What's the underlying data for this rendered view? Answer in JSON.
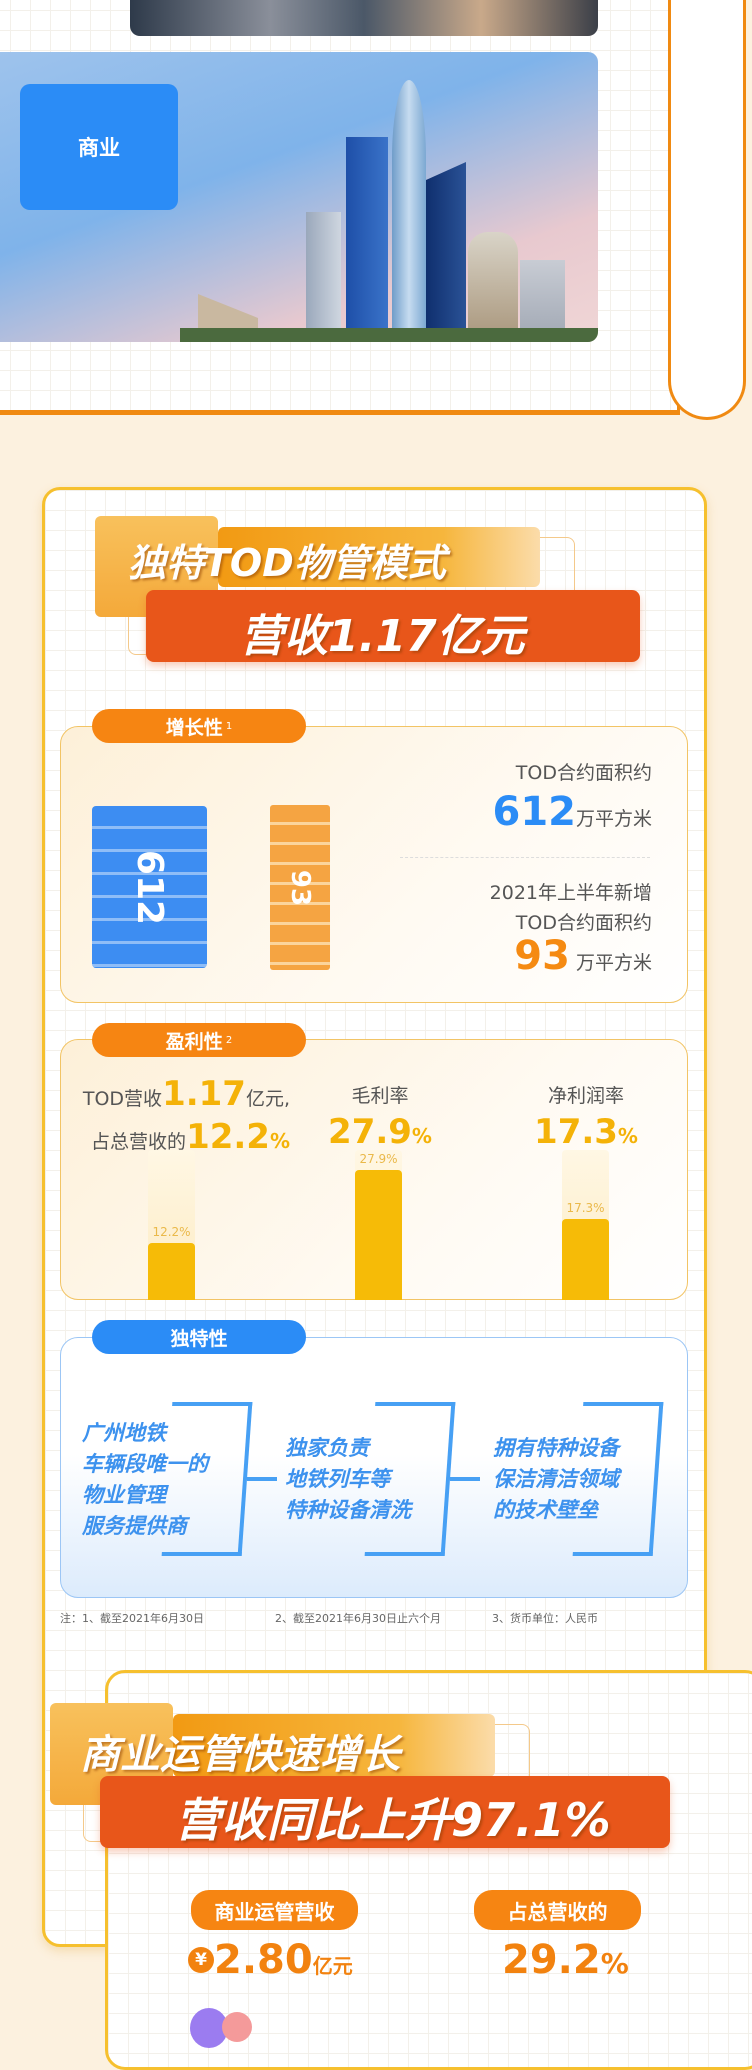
{
  "top_section": {
    "business_tag": "商业"
  },
  "tod": {
    "title_line1": "独特TOD物管模式",
    "title_line2": "营收1.17亿元",
    "growth": {
      "tag": "增长性",
      "note_ref": "1",
      "block_blue_label": "612",
      "block_orange_label": "93",
      "contract_label": "TOD合约面积约",
      "contract_value": "612",
      "contract_unit": "万平方米",
      "new_label_1": "2021年上半年新增",
      "new_label_2": "TOD合约面积约",
      "new_value": "93",
      "new_unit": "万平方米"
    },
    "profit": {
      "tag": "盈利性",
      "note_ref": "2",
      "rev_prefix": "TOD营收",
      "rev_value": "1.17",
      "rev_suffix": "亿元,",
      "share_prefix": "占总营收的",
      "share_value": "12.2",
      "share_pct": "%",
      "gross_label": "毛利率",
      "gross_value": "27.9",
      "gross_pct": "%",
      "net_label": "净利润率",
      "net_value": "17.3",
      "net_pct": "%",
      "bars": [
        {
          "label": "12.2%",
          "value": 12.2
        },
        {
          "label": "27.9%",
          "value": 27.9
        },
        {
          "label": "17.3%",
          "value": 17.3
        }
      ]
    },
    "unique": {
      "tag": "独特性",
      "items": [
        [
          "广州地铁",
          "车辆段唯一的",
          "物业管理",
          "服务提供商"
        ],
        [
          "独家负责",
          "地铁列车等",
          "特种设备清洗"
        ],
        [
          "拥有特种设备",
          "保洁清洁领域",
          "的技术壁垒"
        ]
      ]
    },
    "footnotes": [
      "注：1、截至2021年6月30日",
      "2、截至2021年6月30日止六个月",
      "3、货币单位：人民币"
    ]
  },
  "commercial": {
    "title_line1": "商业运管快速增长",
    "title_line2": "营收同比上升97.1%",
    "revenue_tag": "商业运管营收",
    "currency_symbol": "¥",
    "revenue_value": "2.80",
    "revenue_unit": "亿元",
    "share_tag": "占总营收的",
    "share_value": "29.2",
    "share_pct": "%"
  },
  "colors": {
    "orange": "#f68512",
    "red": "#e8561a",
    "yellow": "#f6bb07",
    "blue": "#2b8cf6",
    "bg": "#fcf1df"
  }
}
